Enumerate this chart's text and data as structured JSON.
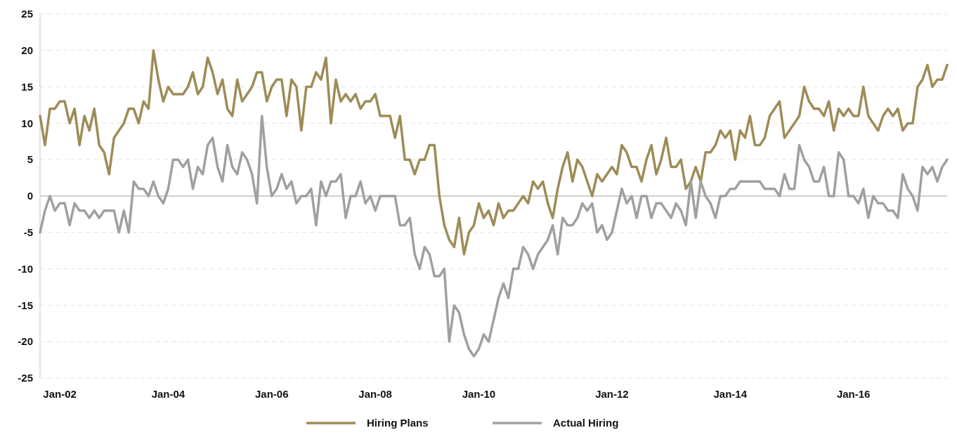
{
  "chart_data": {
    "type": "line",
    "categories": [
      null,
      null,
      null,
      null,
      "Jan-02",
      null,
      null,
      null,
      null,
      null,
      null,
      null,
      null,
      null,
      null,
      null,
      null,
      null,
      null,
      null,
      null,
      null,
      null,
      null,
      null,
      null,
      "Jan-04",
      null,
      null,
      null,
      null,
      null,
      null,
      null,
      null,
      null,
      null,
      null,
      null,
      null,
      null,
      null,
      null,
      null,
      null,
      null,
      null,
      "Jan-06",
      null,
      null,
      null,
      null,
      null,
      null,
      null,
      null,
      null,
      null,
      null,
      null,
      null,
      null,
      null,
      null,
      null,
      null,
      null,
      null,
      "Jan-08",
      null,
      null,
      null,
      null,
      null,
      null,
      null,
      null,
      null,
      null,
      null,
      null,
      null,
      null,
      null,
      null,
      null,
      null,
      null,
      null,
      "Jan-10",
      null,
      null,
      null,
      null,
      null,
      null,
      null,
      null,
      null,
      null,
      null,
      null,
      null,
      null,
      null,
      null,
      null,
      null,
      null,
      null,
      null,
      null,
      null,
      null,
      null,
      null,
      "Jan-12",
      null,
      null,
      null,
      null,
      null,
      null,
      null,
      null,
      null,
      null,
      null,
      null,
      null,
      null,
      null,
      null,
      null,
      null,
      null,
      null,
      null,
      null,
      null,
      "Jan-14",
      null,
      null,
      null,
      null,
      null,
      null,
      null,
      null,
      null,
      null,
      null,
      null,
      null,
      null,
      null,
      null,
      null,
      null,
      null,
      null,
      null,
      null,
      null,
      null,
      "Jan-16",
      null,
      null,
      null,
      null,
      null,
      null,
      null,
      null,
      null,
      null,
      null,
      null,
      null,
      null,
      null,
      null,
      null,
      null,
      null
    ],
    "series": [
      {
        "name": "Hiring Plans",
        "color": "#9e8c57",
        "values": [
          11,
          7,
          12,
          12,
          13,
          13,
          10,
          12,
          7,
          11,
          9,
          12,
          7,
          6,
          3,
          8,
          9,
          10,
          12,
          12,
          10,
          13,
          12,
          20,
          16,
          13,
          15,
          14,
          14,
          14,
          15,
          17,
          14,
          15,
          19,
          17,
          14,
          16,
          12,
          11,
          16,
          13,
          14,
          15,
          17,
          17,
          13,
          15,
          16,
          16,
          11,
          16,
          15,
          9,
          15,
          15,
          17,
          16,
          19,
          10,
          16,
          13,
          14,
          13,
          14,
          12,
          13,
          13,
          14,
          11,
          11,
          11,
          8,
          11,
          5,
          5,
          3,
          5,
          5,
          7,
          7,
          0,
          -4,
          -6,
          -7,
          -3,
          -8,
          -5,
          -4,
          -1,
          -3,
          -2,
          -4,
          -1,
          -3,
          -2,
          -2,
          -1,
          0,
          -1,
          2,
          1,
          2,
          -1,
          -3,
          1,
          4,
          6,
          2,
          5,
          4,
          2,
          0,
          3,
          2,
          3,
          4,
          3,
          7,
          6,
          4,
          4,
          2,
          5,
          7,
          3,
          5,
          8,
          4,
          4,
          5,
          1,
          2,
          4,
          2,
          6,
          6,
          7,
          9,
          8,
          9,
          5,
          9,
          8,
          11,
          7,
          7,
          8,
          11,
          12,
          13,
          8,
          9,
          10,
          11,
          15,
          13,
          12,
          12,
          11,
          13,
          9,
          12,
          11,
          12,
          11,
          11,
          15,
          11,
          10,
          9,
          11,
          12,
          11,
          12,
          9,
          10,
          10,
          15,
          16,
          18,
          15,
          16,
          16,
          18
        ]
      },
      {
        "name": "Actual Hiring",
        "color": "#a0a0a0",
        "values": [
          -5,
          -2,
          0,
          -2,
          -1,
          -1,
          -4,
          -1,
          -2,
          -2,
          -3,
          -2,
          -3,
          -2,
          -2,
          -2,
          -5,
          -2,
          -5,
          2,
          1,
          1,
          0,
          2,
          0,
          -1,
          1,
          5,
          5,
          4,
          5,
          1,
          4,
          3,
          7,
          8,
          4,
          2,
          7,
          4,
          3,
          6,
          5,
          3,
          -1,
          11,
          4,
          0,
          1,
          3,
          1,
          2,
          -1,
          0,
          0,
          1,
          -4,
          2,
          0,
          2,
          2,
          3,
          -3,
          0,
          0,
          2,
          -1,
          0,
          -2,
          0,
          0,
          0,
          0,
          -4,
          -4,
          -3,
          -8,
          -10,
          -7,
          -8,
          -11,
          -11,
          -10,
          -20,
          -15,
          -16,
          -19,
          -21,
          -22,
          -21,
          -19,
          -20,
          -17,
          -14,
          -12,
          -14,
          -10,
          -10,
          -7,
          -8,
          -10,
          -8,
          -7,
          -6,
          -4,
          -8,
          -3,
          -4,
          -4,
          -3,
          -1,
          -2,
          -1,
          -5,
          -4,
          -6,
          -5,
          -2,
          1,
          -1,
          0,
          -3,
          0,
          0,
          -3,
          -1,
          -1,
          -2,
          -3,
          -1,
          -2,
          -4,
          2,
          -3,
          2,
          0,
          -1,
          -3,
          0,
          0,
          1,
          1,
          2,
          2,
          2,
          2,
          2,
          1,
          1,
          1,
          0,
          3,
          1,
          1,
          7,
          5,
          4,
          2,
          2,
          4,
          0,
          0,
          6,
          5,
          0,
          0,
          -1,
          1,
          -3,
          0,
          -1,
          -1,
          -2,
          -2,
          -3,
          3,
          1,
          0,
          -2,
          4,
          3,
          4,
          2,
          4,
          5
        ]
      }
    ],
    "ylim": [
      -25,
      25
    ],
    "yticks": [
      -25,
      -20,
      -15,
      -10,
      -5,
      0,
      5,
      10,
      15,
      20,
      25
    ],
    "grid": "y",
    "legend": "bottom",
    "line_style": "solid",
    "marker": "none"
  }
}
